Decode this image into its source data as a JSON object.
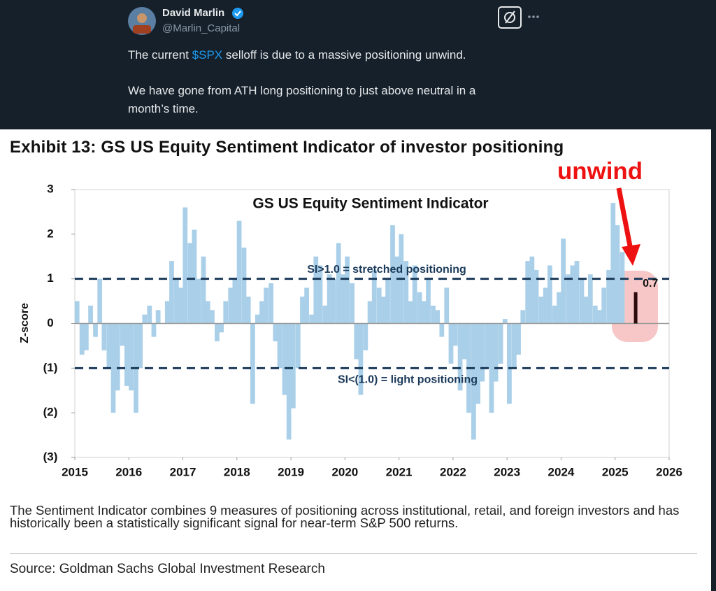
{
  "tweet": {
    "name": "David Marlin",
    "handle": "@Marlin_Capital",
    "paragraph_1": {
      "before": "The current ",
      "cashtag": "$SPX",
      "after": " selloff is due to a massive positioning unwind."
    },
    "paragraph_2": "We have gone from ATH long positioning to just above neutral in a month’s time."
  },
  "chart_data": {
    "type": "bar",
    "exhibit_title": "Exhibit 13: GS US Equity Sentiment Indicator of investor positioning",
    "title": "GS US Equity Sentiment Indicator",
    "y_label": "Z-score",
    "annotation": "unwind",
    "note": "The Sentiment Indicator combines 9 measures of positioning across institutional, retail, and foreign investors and has historically been a statistically significant signal for near-term S&P 500 returns.",
    "source": "Source: Goldman Sachs Global Investment Research",
    "color": "#a9cfe9",
    "x": [
      2015.04,
      2015.13,
      2015.21,
      2015.29,
      2015.38,
      2015.46,
      2015.54,
      2015.63,
      2015.71,
      2015.79,
      2015.88,
      2015.96,
      2016.04,
      2016.13,
      2016.21,
      2016.29,
      2016.38,
      2016.46,
      2016.54,
      2016.63,
      2016.71,
      2016.79,
      2016.88,
      2016.96,
      2017.04,
      2017.13,
      2017.21,
      2017.29,
      2017.38,
      2017.46,
      2017.54,
      2017.63,
      2017.71,
      2017.79,
      2017.88,
      2017.96,
      2018.04,
      2018.13,
      2018.21,
      2018.29,
      2018.38,
      2018.46,
      2018.54,
      2018.63,
      2018.71,
      2018.79,
      2018.88,
      2018.96,
      2019.04,
      2019.13,
      2019.21,
      2019.29,
      2019.38,
      2019.46,
      2019.54,
      2019.63,
      2019.71,
      2019.79,
      2019.88,
      2019.96,
      2020.04,
      2020.13,
      2020.21,
      2020.29,
      2020.38,
      2020.46,
      2020.54,
      2020.63,
      2020.71,
      2020.79,
      2020.88,
      2020.96,
      2021.04,
      2021.13,
      2021.21,
      2021.29,
      2021.38,
      2021.46,
      2021.54,
      2021.63,
      2021.71,
      2021.79,
      2021.88,
      2021.96,
      2022.04,
      2022.13,
      2022.21,
      2022.29,
      2022.38,
      2022.46,
      2022.54,
      2022.63,
      2022.71,
      2022.79,
      2022.88,
      2022.96,
      2023.04,
      2023.13,
      2023.21,
      2023.29,
      2023.38,
      2023.46,
      2023.54,
      2023.63,
      2023.71,
      2023.79,
      2023.88,
      2023.96,
      2024.04,
      2024.13,
      2024.21,
      2024.29,
      2024.38,
      2024.46,
      2024.54,
      2024.63,
      2024.71,
      2024.79,
      2024.88,
      2024.96,
      2025.04,
      2025.13
    ],
    "values": [
      0.5,
      -0.7,
      -0.6,
      0.4,
      -0.3,
      1.0,
      -0.6,
      -1.0,
      -2.0,
      -1.5,
      -0.5,
      -1.4,
      -1.5,
      -2.0,
      -1.0,
      0.2,
      0.4,
      -0.3,
      0.3,
      0.0,
      0.5,
      1.4,
      1.0,
      0.8,
      2.6,
      1.8,
      2.1,
      1.0,
      1.5,
      0.5,
      0.3,
      -0.4,
      -0.2,
      0.5,
      0.8,
      1.0,
      2.3,
      1.7,
      0.6,
      -1.8,
      0.2,
      0.5,
      0.8,
      0.9,
      -0.4,
      -1.0,
      -1.6,
      -2.6,
      -1.9,
      -1.0,
      0.6,
      0.8,
      0.2,
      1.5,
      1.3,
      0.4,
      1.1,
      1.0,
      1.8,
      1.1,
      1.5,
      0.9,
      -0.8,
      -1.6,
      -0.6,
      0.5,
      1.2,
      0.8,
      0.6,
      1.0,
      2.2,
      1.5,
      2.0,
      1.4,
      0.5,
      1.3,
      0.7,
      0.5,
      1.0,
      0.4,
      0.3,
      -0.3,
      0.8,
      -0.9,
      -0.5,
      -1.5,
      -0.8,
      -2.0,
      -2.6,
      -1.8,
      -1.3,
      -1.0,
      -2.0,
      -1.3,
      -0.9,
      0.1,
      -1.8,
      -1.0,
      -0.7,
      0.3,
      1.4,
      1.5,
      1.2,
      0.6,
      0.8,
      1.3,
      0.4,
      0.7,
      1.9,
      1.1,
      1.3,
      1.4,
      1.0,
      0.6,
      1.1,
      0.4,
      0.3,
      0.8,
      1.2,
      2.7,
      2.2,
      1.6
    ],
    "highlight": {
      "x": 2025.38,
      "value": 0.7,
      "color": "#2b0b0b"
    },
    "reference_lines": [
      {
        "value": 1,
        "label": "SI>1.0 = stretched positioning"
      },
      {
        "value": -1,
        "label": "SI<(1.0) = light positioning"
      }
    ],
    "xlim": [
      2015,
      2026
    ],
    "xticks": [
      2015,
      2016,
      2017,
      2018,
      2019,
      2020,
      2021,
      2022,
      2023,
      2024,
      2025,
      2026
    ],
    "ylim": [
      -3,
      3
    ],
    "yticks": [
      {
        "value": -3,
        "label": "(3)"
      },
      {
        "value": -2,
        "label": "(2)"
      },
      {
        "value": -1,
        "label": "(1)"
      },
      0,
      1,
      2,
      3
    ]
  }
}
